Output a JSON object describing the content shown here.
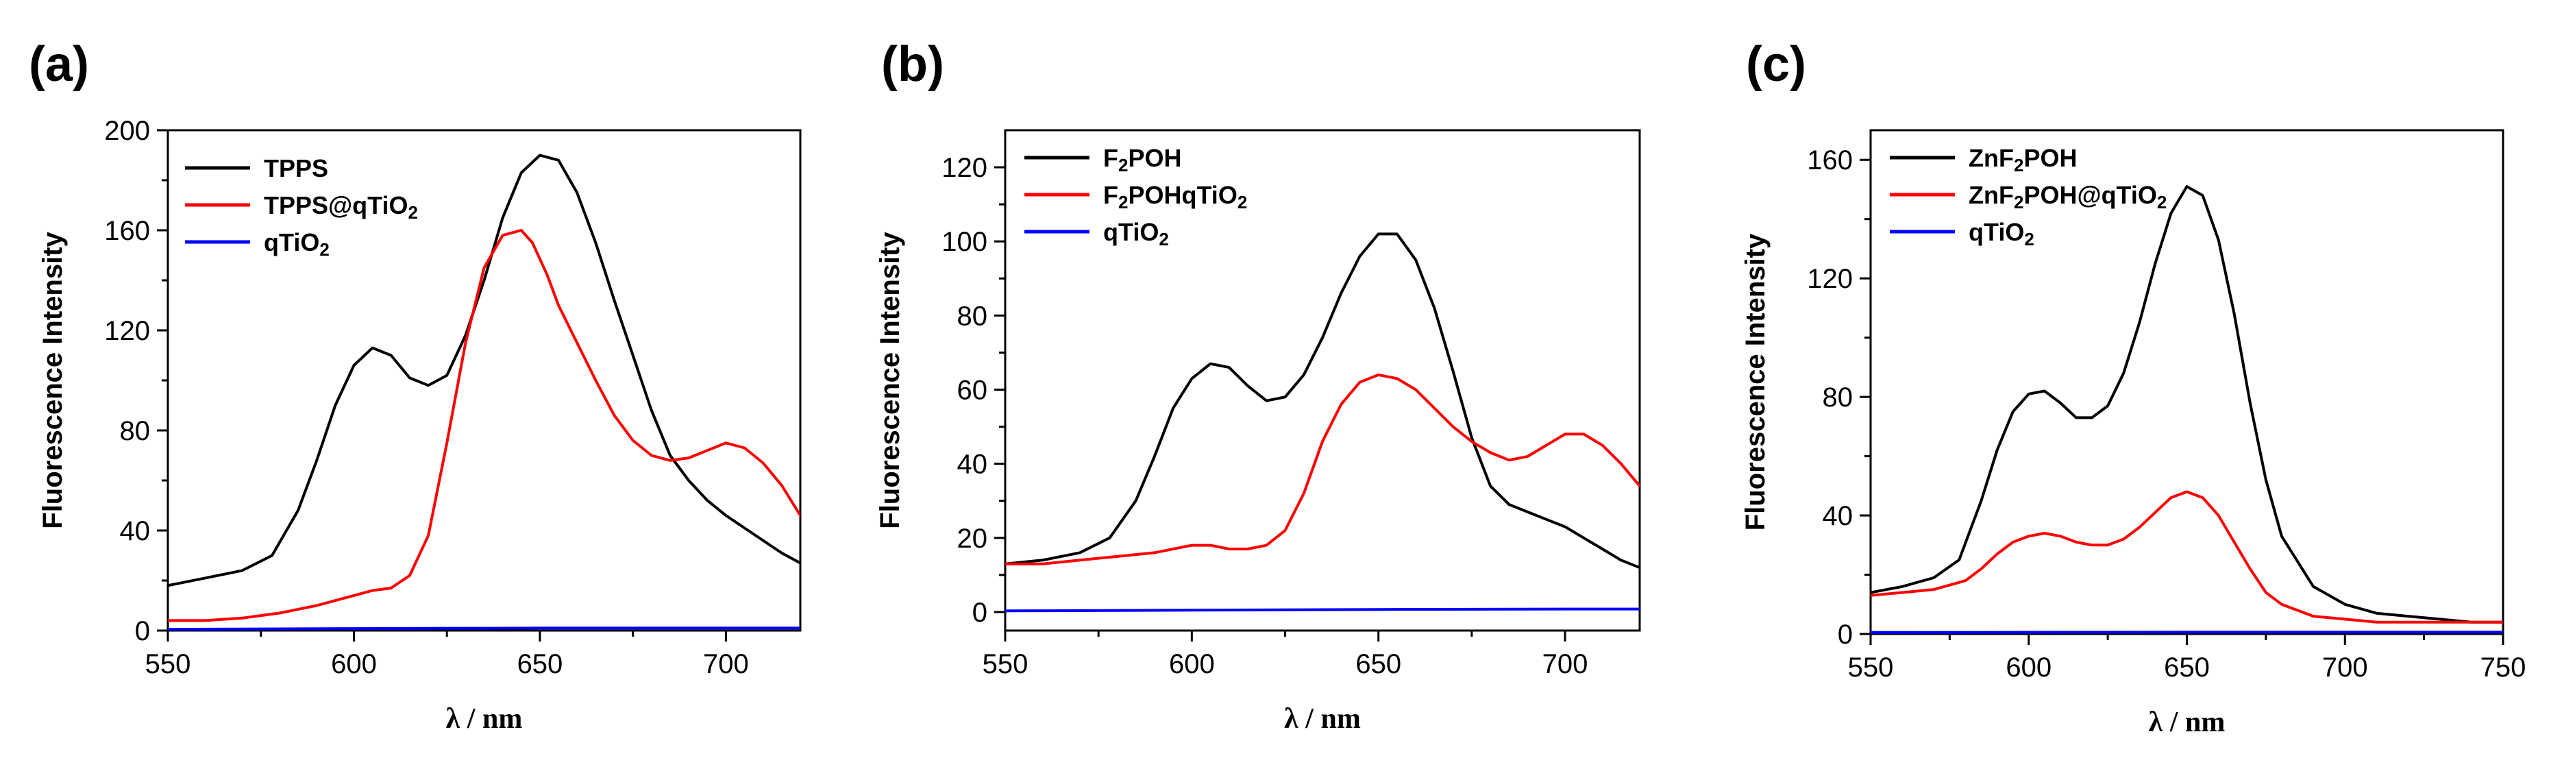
{
  "chart_data": [
    {
      "type": "line",
      "panel_label": "(a)",
      "xlabel": "λ / nm",
      "ylabel": "Fluorescence Intensity",
      "xlim": [
        550,
        720
      ],
      "ylim": [
        0,
        200
      ],
      "xticks": [
        550,
        600,
        650,
        700
      ],
      "yticks": [
        0,
        40,
        80,
        120,
        160,
        200
      ],
      "legend_position": "top-left",
      "series": [
        {
          "name": "TPPS",
          "color": "#000000",
          "legend_parts": [
            "TPPS"
          ],
          "x": [
            550,
            560,
            570,
            578,
            585,
            590,
            595,
            600,
            605,
            610,
            615,
            620,
            625,
            630,
            635,
            640,
            645,
            650,
            655,
            660,
            665,
            670,
            675,
            680,
            685,
            690,
            695,
            700,
            705,
            710,
            715,
            720
          ],
          "y": [
            18,
            21,
            24,
            30,
            48,
            68,
            90,
            106,
            113,
            110,
            101,
            98,
            102,
            118,
            140,
            165,
            183,
            190,
            188,
            175,
            155,
            132,
            110,
            88,
            70,
            60,
            52,
            46,
            41,
            36,
            31,
            27
          ]
        },
        {
          "name": "TPPS@qTiO2",
          "color": "#ff0000",
          "legend_parts": [
            "TPPS@qTiO",
            "2"
          ],
          "x": [
            550,
            560,
            570,
            575,
            580,
            590,
            595,
            600,
            605,
            610,
            615,
            620,
            625,
            630,
            635,
            640,
            645,
            648,
            652,
            655,
            660,
            665,
            670,
            675,
            680,
            685,
            690,
            695,
            700,
            705,
            710,
            715,
            720
          ],
          "y": [
            4,
            4,
            5,
            6,
            7,
            10,
            12,
            14,
            16,
            17,
            22,
            38,
            75,
            115,
            145,
            158,
            160,
            155,
            142,
            130,
            115,
            100,
            86,
            76,
            70,
            68,
            69,
            72,
            75,
            73,
            67,
            58,
            46
          ]
        },
        {
          "name": "qTiO2",
          "color": "#0000ff",
          "legend_parts": [
            "qTiO",
            "2"
          ],
          "x": [
            550,
            600,
            650,
            700,
            720
          ],
          "y": [
            0.5,
            0.8,
            1.0,
            1.0,
            1.0
          ]
        }
      ]
    },
    {
      "type": "line",
      "panel_label": "(b)",
      "xlabel": "λ / nm",
      "ylabel": "Fluorescence Intensity",
      "xlim": [
        550,
        720
      ],
      "ylim": [
        -5,
        130
      ],
      "xticks": [
        550,
        600,
        650,
        700
      ],
      "yticks": [
        0,
        20,
        40,
        60,
        80,
        100,
        120
      ],
      "legend_position": "top-left",
      "series": [
        {
          "name": "F2POH",
          "color": "#000000",
          "legend_parts": [
            "F",
            "2",
            "POH"
          ],
          "x": [
            550,
            560,
            570,
            578,
            585,
            590,
            595,
            600,
            605,
            610,
            615,
            620,
            625,
            630,
            635,
            640,
            645,
            650,
            655,
            660,
            665,
            670,
            675,
            680,
            685,
            690,
            695,
            700,
            705,
            710,
            715,
            720
          ],
          "y": [
            13,
            14,
            16,
            20,
            30,
            42,
            55,
            63,
            67,
            66,
            61,
            57,
            58,
            64,
            74,
            86,
            96,
            102,
            102,
            95,
            82,
            65,
            47,
            34,
            29,
            27,
            25,
            23,
            20,
            17,
            14,
            12
          ]
        },
        {
          "name": "F2POHqTiO2",
          "color": "#ff0000",
          "legend_parts": [
            "F",
            "2",
            "POHqTiO",
            "2"
          ],
          "x": [
            550,
            560,
            570,
            580,
            590,
            600,
            605,
            610,
            615,
            620,
            625,
            630,
            635,
            640,
            645,
            650,
            655,
            660,
            665,
            670,
            675,
            680,
            685,
            690,
            695,
            700,
            705,
            710,
            715,
            720
          ],
          "y": [
            13,
            13,
            14,
            15,
            16,
            18,
            18,
            17,
            17,
            18,
            22,
            32,
            46,
            56,
            62,
            64,
            63,
            60,
            55,
            50,
            46,
            43,
            41,
            42,
            45,
            48,
            48,
            45,
            40,
            34
          ]
        },
        {
          "name": "qTiO2",
          "color": "#0000ff",
          "legend_parts": [
            "qTiO",
            "2"
          ],
          "x": [
            550,
            600,
            650,
            700,
            720
          ],
          "y": [
            0.3,
            0.5,
            0.7,
            0.8,
            0.8
          ]
        }
      ]
    },
    {
      "type": "line",
      "panel_label": "(c)",
      "xlabel": "λ / nm",
      "ylabel": "Fluorescence Intensity",
      "xlim": [
        550,
        750
      ],
      "ylim": [
        0,
        170
      ],
      "xticks": [
        550,
        600,
        650,
        700,
        750
      ],
      "yticks": [
        0,
        40,
        80,
        120,
        160
      ],
      "legend_position": "top-left",
      "series": [
        {
          "name": "ZnF2POH",
          "color": "#000000",
          "legend_parts": [
            "ZnF",
            "2",
            "POH"
          ],
          "x": [
            550,
            560,
            570,
            578,
            585,
            590,
            595,
            600,
            605,
            610,
            615,
            620,
            625,
            630,
            635,
            640,
            645,
            650,
            655,
            660,
            665,
            670,
            675,
            680,
            690,
            700,
            710,
            720,
            730,
            740,
            750
          ],
          "y": [
            14,
            16,
            19,
            25,
            45,
            62,
            75,
            81,
            82,
            78,
            73,
            73,
            77,
            88,
            105,
            125,
            142,
            151,
            148,
            133,
            108,
            78,
            52,
            33,
            16,
            10,
            7,
            6,
            5,
            4,
            4
          ]
        },
        {
          "name": "ZnF2POH@qTiO2",
          "color": "#ff0000",
          "legend_parts": [
            "ZnF",
            "2",
            "POH@qTiO",
            "2"
          ],
          "x": [
            550,
            560,
            570,
            580,
            585,
            590,
            595,
            600,
            605,
            610,
            615,
            620,
            625,
            630,
            635,
            640,
            645,
            650,
            655,
            660,
            665,
            670,
            675,
            680,
            690,
            700,
            710,
            720,
            730,
            740,
            750
          ],
          "y": [
            13,
            14,
            15,
            18,
            22,
            27,
            31,
            33,
            34,
            33,
            31,
            30,
            30,
            32,
            36,
            41,
            46,
            48,
            46,
            40,
            31,
            22,
            14,
            10,
            6,
            5,
            4,
            4,
            4,
            4,
            4
          ]
        },
        {
          "name": "qTiO2",
          "color": "#0000ff",
          "legend_parts": [
            "qTiO",
            "2"
          ],
          "x": [
            550,
            650,
            750
          ],
          "y": [
            0.5,
            0.6,
            0.6
          ]
        }
      ]
    }
  ]
}
